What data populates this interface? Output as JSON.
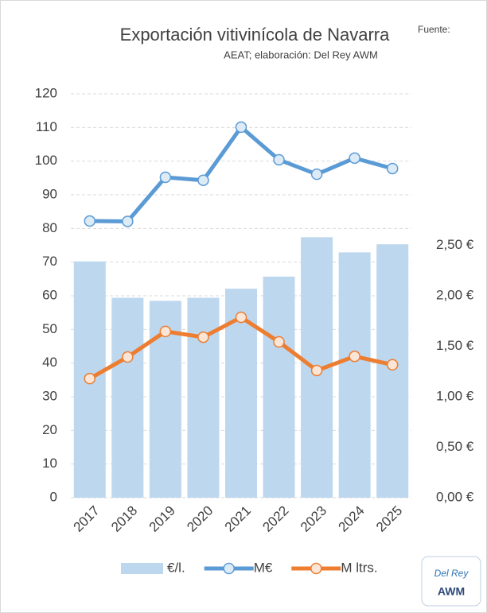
{
  "chart_data": {
    "type": "bar-line",
    "title": "Exportación vitivinícola de Navarra",
    "source": [
      "Fuente:",
      "AEAT; elaboración: Del Rey AWM"
    ],
    "logo": [
      "Del Rey",
      "AWM"
    ],
    "categories": [
      "2017",
      "2018",
      "2019",
      "2020",
      "2021",
      "2022",
      "2023",
      "2024",
      "2025"
    ],
    "series": [
      {
        "name": "€/l.",
        "type": "bar",
        "axis": "y2",
        "color": "#bdd7ee",
        "values": [
          2.34,
          1.98,
          1.95,
          1.98,
          2.07,
          2.19,
          2.58,
          2.43,
          2.51
        ]
      },
      {
        "name": "M€",
        "type": "line",
        "color": "#5b9bd5",
        "marker_fill": "#ddebf7",
        "values": [
          82.2,
          82.1,
          95.2,
          94.3,
          110.1,
          100.4,
          96.1,
          100.9,
          97.8
        ]
      },
      {
        "name": "M ltrs.",
        "type": "line",
        "color": "#ed7d31",
        "marker_fill": "#fbe5d6",
        "values": [
          35.4,
          41.8,
          49.4,
          47.7,
          53.6,
          46.3,
          37.8,
          42.0,
          39.5
        ]
      }
    ],
    "ylim": [
      0,
      120
    ],
    "yticks": [
      0,
      10,
      20,
      30,
      40,
      50,
      60,
      70,
      80,
      90,
      100,
      110,
      120
    ],
    "y2lim": [
      0,
      4
    ],
    "y2ticks": [
      {
        "value": 0,
        "label": "0,00 €"
      },
      {
        "value": 0.5,
        "label": "0,50 €"
      },
      {
        "value": 1,
        "label": "1,00 €"
      },
      {
        "value": 1.5,
        "label": "1,50 €"
      },
      {
        "value": 2,
        "label": "2,00 €"
      },
      {
        "value": 2.5,
        "label": "2,50 €"
      }
    ],
    "grid": true,
    "legend": "bottom"
  }
}
